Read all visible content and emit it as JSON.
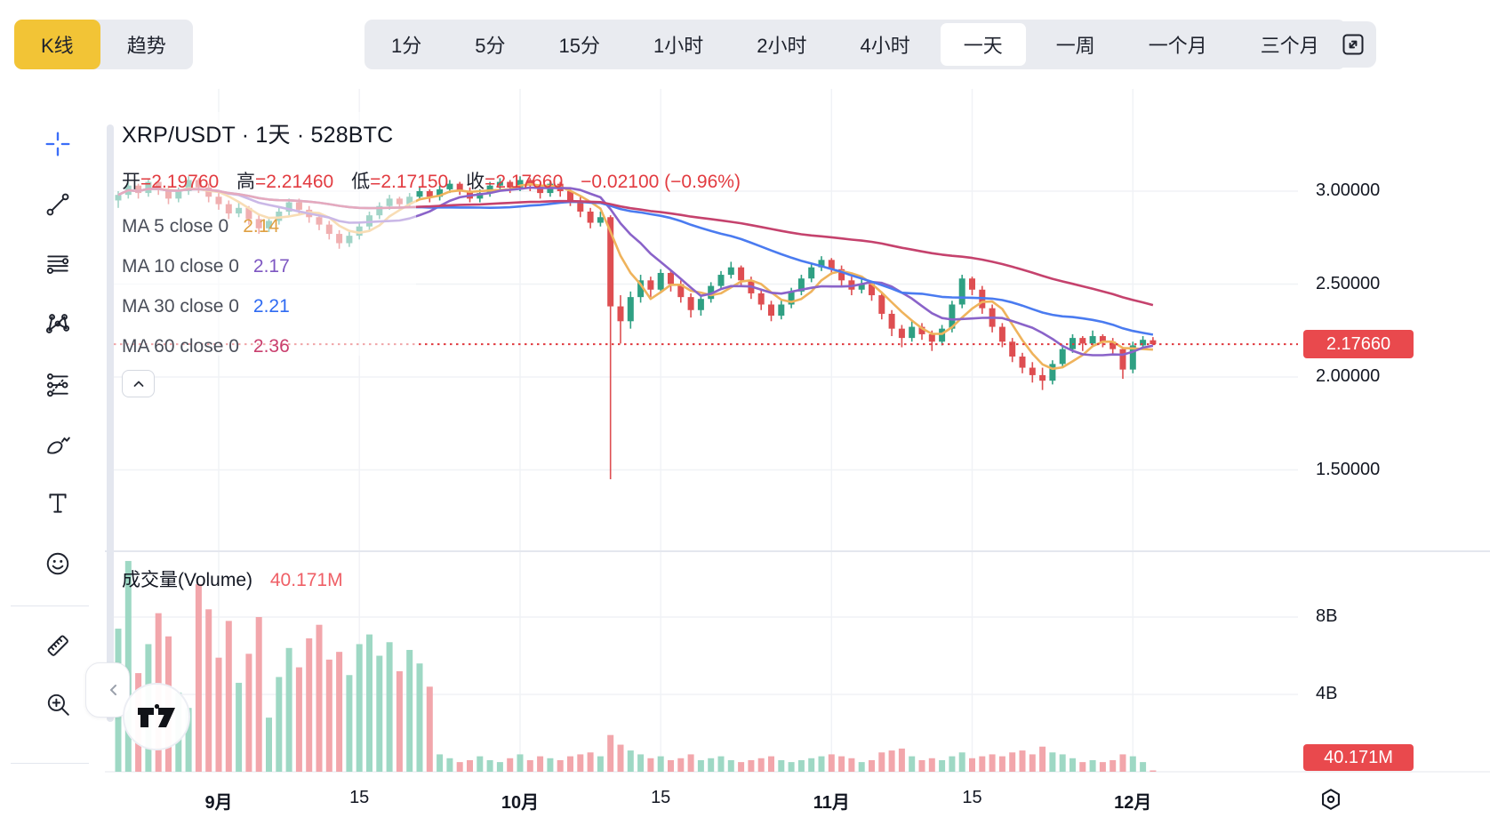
{
  "toolbar": {
    "chart_types": [
      {
        "label": "K线",
        "active": true
      },
      {
        "label": "趋势",
        "active": false
      }
    ],
    "intervals": [
      {
        "label": "1分",
        "active": false
      },
      {
        "label": "5分",
        "active": false
      },
      {
        "label": "15分",
        "active": false
      },
      {
        "label": "1小时",
        "active": false
      },
      {
        "label": "2小时",
        "active": false
      },
      {
        "label": "4小时",
        "active": false
      },
      {
        "label": "一天",
        "active": true
      },
      {
        "label": "一周",
        "active": false
      },
      {
        "label": "一个月",
        "active": false
      },
      {
        "label": "三个月",
        "active": false
      }
    ],
    "fullscreen_button": {
      "icon": "fullscreen-icon"
    }
  },
  "side_toolbar": {
    "tools": [
      {
        "icon": "crosshair-icon",
        "active": true
      },
      {
        "icon": "trend-line-icon",
        "active": false
      },
      {
        "icon": "horizontal-lines-icon",
        "active": false
      },
      {
        "icon": "xabcd-pattern-icon",
        "active": false
      },
      {
        "icon": "forecast-icon",
        "active": false
      },
      {
        "icon": "brush-icon",
        "active": false
      },
      {
        "icon": "text-icon",
        "active": false
      },
      {
        "icon": "emoji-icon",
        "active": false
      },
      {
        "type": "divider"
      },
      {
        "icon": "ruler-icon",
        "active": false
      },
      {
        "icon": "zoom-in-icon",
        "active": false
      },
      {
        "type": "divider"
      }
    ]
  },
  "chart": {
    "title": "XRP/USDT · 1天 · 528BTC",
    "legend": {
      "open": {
        "label": "开",
        "value": "2.19760"
      },
      "high": {
        "label": "高",
        "value": "2.21460"
      },
      "low": {
        "label": "低",
        "value": "2.17150"
      },
      "close": {
        "label": "收",
        "value": "2.17660"
      },
      "change": "−0.02100",
      "change_pct": "(−0.96%)"
    },
    "ma_rows": [
      {
        "label": "MA 5 close 0",
        "value": "2.14",
        "color": "#dfa043"
      },
      {
        "label": "MA 10 close 0",
        "value": "2.17",
        "color": "#7e57c2"
      },
      {
        "label": "MA 30 close 0",
        "value": "2.21",
        "color": "#2f6bf2"
      },
      {
        "label": "MA 60 close 0",
        "value": "2.36",
        "color": "#c93f6e"
      }
    ],
    "volume_legend": {
      "label": "成交量(Volume)",
      "value": "40.171M"
    },
    "price_badge": "2.17660",
    "volume_badge": "40.171M"
  },
  "chart_data": {
    "type": "candlestick",
    "symbol": "XRP/USDT",
    "timeframe": "1天",
    "title": "XRP/USDT · 1天 · 528BTC",
    "current_price": 2.1766,
    "last_volume_b": 0.04,
    "price_axis_ticks": [
      {
        "value": 3.0,
        "label": "3.00000"
      },
      {
        "value": 2.5,
        "label": "2.50000"
      },
      {
        "value": 2.0,
        "label": "2.00000"
      },
      {
        "value": 1.5,
        "label": "1.50000"
      }
    ],
    "volume_axis_ticks": [
      {
        "value": 8,
        "label": "8B"
      },
      {
        "value": 4,
        "label": "4B"
      }
    ],
    "time_ticks": [
      {
        "label": "9月",
        "day": 10,
        "bold": true
      },
      {
        "label": "15",
        "day": 24,
        "bold": false
      },
      {
        "label": "10月",
        "day": 40,
        "bold": true
      },
      {
        "label": "15",
        "day": 54,
        "bold": false
      },
      {
        "label": "11月",
        "day": 71,
        "bold": true
      },
      {
        "label": "15",
        "day": 85,
        "bold": false
      },
      {
        "label": "12月",
        "day": 101,
        "bold": true
      }
    ],
    "moving_averages": [
      {
        "period": 5,
        "color": "#efb35c"
      },
      {
        "period": 10,
        "color": "#8a63c9"
      },
      {
        "period": 30,
        "color": "#4a7bf0"
      },
      {
        "period": 60,
        "color": "#c5426d"
      }
    ],
    "colors": {
      "up": "#2fa083",
      "down": "#de4e51",
      "vol_up": "#9ed8c4",
      "vol_down": "#f2a6ab",
      "grid": "#f0f2f6",
      "price_line": "#e0393e"
    },
    "candles_format": [
      "open",
      "high",
      "low",
      "close",
      "volume_b"
    ],
    "candles": [
      [
        2.95,
        3.0,
        2.91,
        2.98,
        7.4
      ],
      [
        2.98,
        3.05,
        2.96,
        3.03,
        10.9
      ],
      [
        3.03,
        3.04,
        2.96,
        2.99,
        5.1
      ],
      [
        2.99,
        3.07,
        2.97,
        3.05,
        6.6
      ],
      [
        3.05,
        3.06,
        2.98,
        3.01,
        8.2
      ],
      [
        3.01,
        3.03,
        2.93,
        2.96,
        7.0
      ],
      [
        2.96,
        3.02,
        2.94,
        3.0,
        4.1
      ],
      [
        3.0,
        3.08,
        2.98,
        3.06,
        3.3
      ],
      [
        3.06,
        3.07,
        2.99,
        3.02,
        9.7
      ],
      [
        3.02,
        3.04,
        2.94,
        2.97,
        8.4
      ],
      [
        2.97,
        2.99,
        2.9,
        2.93,
        5.9
      ],
      [
        2.93,
        2.95,
        2.85,
        2.88,
        7.8
      ],
      [
        2.88,
        2.94,
        2.86,
        2.91,
        4.6
      ],
      [
        2.91,
        2.92,
        2.82,
        2.85,
        6.1
      ],
      [
        2.85,
        2.87,
        2.77,
        2.8,
        8.0
      ],
      [
        2.8,
        2.86,
        2.78,
        2.84,
        2.8
      ],
      [
        2.84,
        2.91,
        2.82,
        2.89,
        4.9
      ],
      [
        2.89,
        2.96,
        2.87,
        2.94,
        6.4
      ],
      [
        2.94,
        2.96,
        2.87,
        2.9,
        5.4
      ],
      [
        2.9,
        2.92,
        2.83,
        2.86,
        6.9
      ],
      [
        2.86,
        2.88,
        2.79,
        2.82,
        7.6
      ],
      [
        2.82,
        2.84,
        2.74,
        2.77,
        5.8
      ],
      [
        2.77,
        2.79,
        2.69,
        2.72,
        6.2
      ],
      [
        2.72,
        2.78,
        2.7,
        2.76,
        5.0
      ],
      [
        2.76,
        2.83,
        2.74,
        2.81,
        6.6
      ],
      [
        2.81,
        2.89,
        2.79,
        2.87,
        7.1
      ],
      [
        2.87,
        2.94,
        2.85,
        2.92,
        6.0
      ],
      [
        2.92,
        2.98,
        2.9,
        2.96,
        6.7
      ],
      [
        2.96,
        2.97,
        2.9,
        2.93,
        5.2
      ],
      [
        2.93,
        2.99,
        2.91,
        2.97,
        6.3
      ],
      [
        2.97,
        3.02,
        2.95,
        3.0,
        5.6
      ],
      [
        3.0,
        3.01,
        2.94,
        2.97,
        4.4
      ],
      [
        2.97,
        3.03,
        2.95,
        3.01,
        0.9
      ],
      [
        3.01,
        3.06,
        2.99,
        3.04,
        0.7
      ],
      [
        3.04,
        3.05,
        2.98,
        3.0,
        0.5
      ],
      [
        3.0,
        3.02,
        2.94,
        2.96,
        0.6
      ],
      [
        2.96,
        3.01,
        2.94,
        2.99,
        0.8
      ],
      [
        2.99,
        3.05,
        2.97,
        3.03,
        0.6
      ],
      [
        3.03,
        3.07,
        3.01,
        3.05,
        0.5
      ],
      [
        3.05,
        3.06,
        2.99,
        3.02,
        0.7
      ],
      [
        3.02,
        3.08,
        3.0,
        3.06,
        0.9
      ],
      [
        3.06,
        3.07,
        3.0,
        3.03,
        0.6
      ],
      [
        3.03,
        3.04,
        2.96,
        2.99,
        0.8
      ],
      [
        2.99,
        3.06,
        2.97,
        3.04,
        0.7
      ],
      [
        3.04,
        3.05,
        2.97,
        3.0,
        0.6
      ],
      [
        3.0,
        3.01,
        2.92,
        2.95,
        0.8
      ],
      [
        2.95,
        2.97,
        2.86,
        2.89,
        0.9
      ],
      [
        2.89,
        2.91,
        2.8,
        2.83,
        1.0
      ],
      [
        2.83,
        2.89,
        2.81,
        2.86,
        0.8
      ],
      [
        2.86,
        2.87,
        1.45,
        2.38,
        1.9
      ],
      [
        2.38,
        2.44,
        2.18,
        2.3,
        1.4
      ],
      [
        2.3,
        2.46,
        2.26,
        2.43,
        1.1
      ],
      [
        2.43,
        2.55,
        2.4,
        2.52,
        0.9
      ],
      [
        2.52,
        2.54,
        2.43,
        2.47,
        0.7
      ],
      [
        2.47,
        2.58,
        2.45,
        2.56,
        0.8
      ],
      [
        2.56,
        2.57,
        2.46,
        2.5,
        0.6
      ],
      [
        2.5,
        2.52,
        2.4,
        2.43,
        0.7
      ],
      [
        2.43,
        2.45,
        2.32,
        2.36,
        0.9
      ],
      [
        2.36,
        2.44,
        2.33,
        2.42,
        0.6
      ],
      [
        2.42,
        2.51,
        2.4,
        2.49,
        0.7
      ],
      [
        2.49,
        2.57,
        2.47,
        2.55,
        0.8
      ],
      [
        2.55,
        2.62,
        2.53,
        2.59,
        0.6
      ],
      [
        2.59,
        2.6,
        2.49,
        2.52,
        0.5
      ],
      [
        2.52,
        2.54,
        2.42,
        2.45,
        0.6
      ],
      [
        2.45,
        2.47,
        2.36,
        2.39,
        0.7
      ],
      [
        2.39,
        2.41,
        2.3,
        2.33,
        0.8
      ],
      [
        2.33,
        2.41,
        2.31,
        2.39,
        0.6
      ],
      [
        2.39,
        2.48,
        2.37,
        2.46,
        0.5
      ],
      [
        2.46,
        2.55,
        2.44,
        2.53,
        0.6
      ],
      [
        2.53,
        2.61,
        2.51,
        2.59,
        0.7
      ],
      [
        2.59,
        2.65,
        2.57,
        2.63,
        0.8
      ],
      [
        2.63,
        2.64,
        2.55,
        2.58,
        0.9
      ],
      [
        2.58,
        2.6,
        2.49,
        2.52,
        0.8
      ],
      [
        2.52,
        2.54,
        2.44,
        2.47,
        0.7
      ],
      [
        2.47,
        2.53,
        2.45,
        2.5,
        0.5
      ],
      [
        2.5,
        2.51,
        2.41,
        2.44,
        0.6
      ],
      [
        2.44,
        2.46,
        2.31,
        2.34,
        1.0
      ],
      [
        2.34,
        2.36,
        2.22,
        2.26,
        1.1
      ],
      [
        2.26,
        2.28,
        2.16,
        2.21,
        1.2
      ],
      [
        2.21,
        2.3,
        2.19,
        2.27,
        0.8
      ],
      [
        2.27,
        2.29,
        2.2,
        2.23,
        0.6
      ],
      [
        2.23,
        2.25,
        2.14,
        2.19,
        0.7
      ],
      [
        2.19,
        2.28,
        2.17,
        2.26,
        0.6
      ],
      [
        2.26,
        2.41,
        2.24,
        2.39,
        0.8
      ],
      [
        2.39,
        2.55,
        2.37,
        2.53,
        1.0
      ],
      [
        2.53,
        2.54,
        2.44,
        2.47,
        0.7
      ],
      [
        2.47,
        2.49,
        2.34,
        2.37,
        0.8
      ],
      [
        2.37,
        2.39,
        2.24,
        2.27,
        0.9
      ],
      [
        2.27,
        2.29,
        2.16,
        2.19,
        0.8
      ],
      [
        2.19,
        2.21,
        2.08,
        2.11,
        1.0
      ],
      [
        2.11,
        2.13,
        2.02,
        2.05,
        1.1
      ],
      [
        2.05,
        2.08,
        1.97,
        2.01,
        0.9
      ],
      [
        2.01,
        2.05,
        1.93,
        1.98,
        1.3
      ],
      [
        1.98,
        2.09,
        1.96,
        2.07,
        1.0
      ],
      [
        2.07,
        2.17,
        2.05,
        2.15,
        0.9
      ],
      [
        2.15,
        2.23,
        2.13,
        2.21,
        0.7
      ],
      [
        2.21,
        2.22,
        2.14,
        2.18,
        0.5
      ],
      [
        2.18,
        2.25,
        2.16,
        2.22,
        0.6
      ],
      [
        2.22,
        2.23,
        2.16,
        2.19,
        0.5
      ],
      [
        2.19,
        2.21,
        2.12,
        2.15,
        0.6
      ],
      [
        2.15,
        2.16,
        1.99,
        2.04,
        0.9
      ],
      [
        2.04,
        2.19,
        2.02,
        2.17,
        0.8
      ],
      [
        2.17,
        2.22,
        2.15,
        2.2,
        0.5
      ],
      [
        2.1976,
        2.2146,
        2.1715,
        2.1766,
        0.04
      ]
    ]
  }
}
